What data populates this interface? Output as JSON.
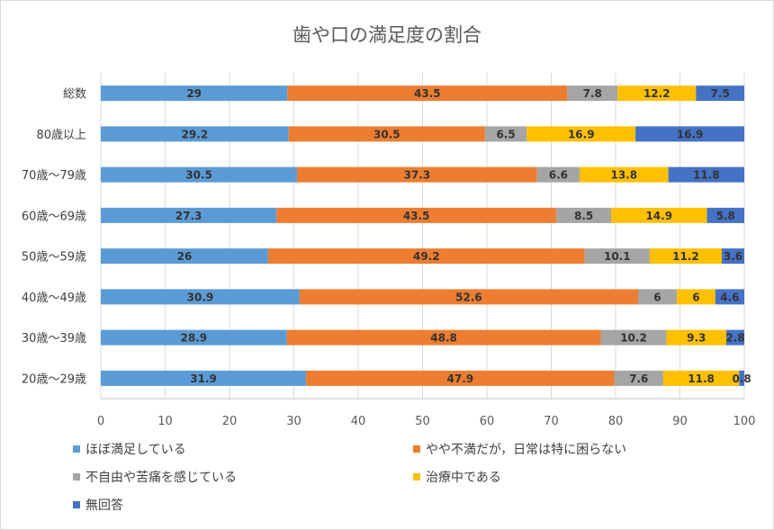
{
  "chart_data": {
    "type": "bar",
    "orientation": "horizontal",
    "stacked": true,
    "title": "歯や口の満足度の割合",
    "categories": [
      "総数",
      "80歳以上",
      "70歳〜79歳",
      "60歳〜69歳",
      "50歳〜59歳",
      "40歳〜49歳",
      "30歳〜39歳",
      "20歳〜29歳"
    ],
    "series": [
      {
        "name": "ほぼ満足している",
        "color": "#5B9BD5",
        "values": [
          29,
          29.2,
          30.5,
          27.3,
          26,
          30.9,
          28.9,
          31.9
        ]
      },
      {
        "name": "やや不満だが，日常は特に困らない",
        "color": "#ED7D31",
        "values": [
          43.5,
          30.5,
          37.3,
          43.5,
          49.2,
          52.6,
          48.8,
          47.9
        ]
      },
      {
        "name": "不自由や苦痛を感じている",
        "color": "#A5A5A5",
        "values": [
          7.8,
          6.5,
          6.6,
          8.5,
          10.1,
          6,
          10.2,
          7.6
        ]
      },
      {
        "name": "治療中である",
        "color": "#FFC000",
        "values": [
          12.2,
          16.9,
          13.8,
          14.9,
          11.2,
          6,
          9.3,
          11.8
        ]
      },
      {
        "name": "無回答",
        "color": "#4472C4",
        "values": [
          7.5,
          16.9,
          11.8,
          5.8,
          3.6,
          4.6,
          2.8,
          0.8
        ]
      }
    ],
    "xlim": [
      0,
      100
    ],
    "xticks": [
      "0",
      "10",
      "20",
      "30",
      "40",
      "50",
      "60",
      "70",
      "80",
      "90",
      "100"
    ],
    "grid": true,
    "legend_position": "bottom"
  }
}
